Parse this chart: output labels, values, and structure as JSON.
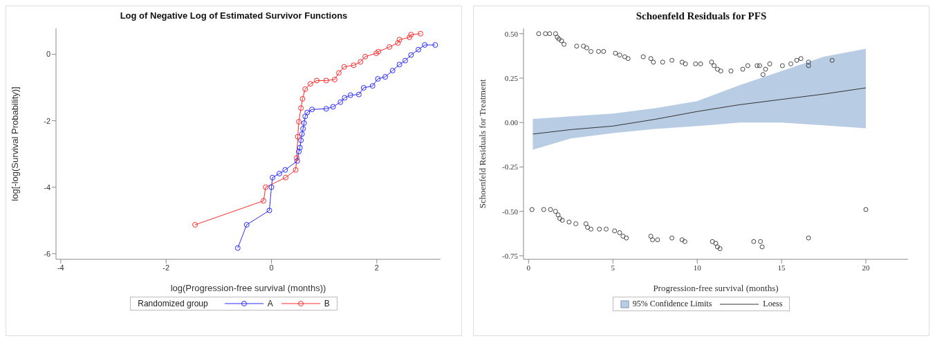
{
  "chart_data": [
    {
      "type": "line",
      "title": "Log of Negative Log of Estimated Survivor Functions",
      "xlabel": "log(Progression-free survival (months))",
      "ylabel": "log[-log(Survival Probability)]",
      "legend_title": "Randomized group",
      "legend": "bottom",
      "marker": "circle",
      "xlim": [
        -4.09,
        3.21
      ],
      "ylim": [
        -6.17,
        0.78
      ],
      "xticks": [
        -4,
        -2,
        0,
        2
      ],
      "yticks": [
        -6,
        -4,
        -2,
        0
      ],
      "series": [
        {
          "name": "A",
          "color": "#2a2aff",
          "x": [
            -0.64,
            -0.47,
            -0.04,
            0,
            0.02,
            0.15,
            0.26,
            0.49,
            0.52,
            0.54,
            0.56,
            0.58,
            0.6,
            0.62,
            0.64,
            0.68,
            0.77,
            1.04,
            1.17,
            1.31,
            1.39,
            1.5,
            1.66,
            1.75,
            1.92,
            2.02,
            2.16,
            2.3,
            2.43,
            2.54,
            2.65,
            2.79,
            2.91,
            3.11
          ],
          "values": [
            -5.83,
            -5.13,
            -4.7,
            -4.0,
            -3.71,
            -3.59,
            -3.48,
            -3.21,
            -2.93,
            -2.81,
            -2.59,
            -2.4,
            -2.24,
            -2.07,
            -1.87,
            -1.75,
            -1.66,
            -1.64,
            -1.58,
            -1.44,
            -1.31,
            -1.23,
            -1.21,
            -1.01,
            -0.95,
            -0.74,
            -0.68,
            -0.49,
            -0.31,
            -0.19,
            -0.02,
            0.14,
            0.28,
            0.28
          ]
        },
        {
          "name": "B",
          "color": "#ff2a2a",
          "x": [
            -1.45,
            -0.15,
            -0.11,
            0.27,
            0.46,
            0.48,
            0.5,
            0.52,
            0.56,
            0.59,
            0.64,
            0.74,
            0.86,
            1.04,
            1.2,
            1.28,
            1.38,
            1.56,
            1.69,
            1.78,
            1.99,
            2.03,
            2.24,
            2.4,
            2.43,
            2.62,
            2.65,
            2.83
          ],
          "values": [
            -5.13,
            -4.41,
            -4.0,
            -3.71,
            -3.48,
            -3.12,
            -2.48,
            -2.03,
            -1.62,
            -1.34,
            -1.05,
            -0.89,
            -0.79,
            -0.79,
            -0.76,
            -0.56,
            -0.38,
            -0.33,
            -0.23,
            -0.07,
            0.03,
            0.08,
            0.22,
            0.34,
            0.44,
            0.51,
            0.59,
            0.62
          ]
        }
      ]
    },
    {
      "type": "scatter",
      "title": "Schoenfeld Residuals for PFS",
      "xlabel": "Progression-free survival (months)",
      "ylabel": "Schoenfeld Residuals for Treatment",
      "annotations": [
        "95% Confidence Limits"
      ],
      "legend": "bottom",
      "marker": "circle",
      "xlim": [
        -0.3,
        22.5
      ],
      "ylim": [
        -0.77,
        0.53
      ],
      "xticks": [
        0,
        5,
        10,
        15,
        20
      ],
      "yticks": [
        {
          "value": -0.75,
          "label": "-0.75"
        },
        {
          "value": -0.5,
          "label": "-0.50"
        },
        {
          "value": -0.25,
          "label": "-0.25"
        },
        {
          "value": 0,
          "label": "0.00"
        },
        {
          "value": 0.25,
          "label": "0.25"
        },
        {
          "value": 0.5,
          "label": "0.50"
        }
      ],
      "series": [
        {
          "color": "#444444",
          "x": [
            0.6,
            1.0,
            1.25,
            1.6,
            1.7,
            1.8,
            1.95,
            2.1,
            2.85,
            3.25,
            3.45,
            3.7,
            4.15,
            4.45,
            5.15,
            5.4,
            5.7,
            5.9,
            6.8,
            7.25,
            7.4,
            7.95,
            8.5,
            9.1,
            9.3,
            9.9,
            10.2,
            10.85,
            11.0,
            11.2,
            11.4,
            12.0,
            12.7,
            13.0,
            13.55,
            13.7,
            13.9,
            14.05,
            14.3,
            15.05,
            15.55,
            15.9,
            16.15,
            16.6,
            16.6,
            18.0,
            0.2,
            0.9,
            1.3,
            1.6,
            1.75,
            1.85,
            2.0,
            2.4,
            2.8,
            3.4,
            3.5,
            3.7,
            4.2,
            4.6,
            5.1,
            5.4,
            5.6,
            5.8,
            7.25,
            7.35,
            7.65,
            8.5,
            9.1,
            9.27,
            10.9,
            11.1,
            11.2,
            11.35,
            13.35,
            13.75,
            13.85,
            16.6,
            20.0
          ],
          "values": [
            0.5,
            0.5,
            0.5,
            0.5,
            0.48,
            0.47,
            0.46,
            0.44,
            0.43,
            0.43,
            0.42,
            0.4,
            0.4,
            0.4,
            0.39,
            0.38,
            0.37,
            0.36,
            0.37,
            0.36,
            0.34,
            0.34,
            0.35,
            0.34,
            0.33,
            0.33,
            0.33,
            0.34,
            0.32,
            0.3,
            0.29,
            0.29,
            0.3,
            0.32,
            0.32,
            0.32,
            0.27,
            0.3,
            0.33,
            0.32,
            0.33,
            0.35,
            0.36,
            0.34,
            0.32,
            0.35,
            -0.49,
            -0.49,
            -0.49,
            -0.5,
            -0.52,
            -0.54,
            -0.55,
            -0.56,
            -0.57,
            -0.57,
            -0.59,
            -0.6,
            -0.6,
            -0.6,
            -0.61,
            -0.62,
            -0.64,
            -0.65,
            -0.64,
            -0.66,
            -0.66,
            -0.65,
            -0.66,
            -0.67,
            -0.67,
            -0.68,
            -0.7,
            -0.71,
            -0.67,
            -0.67,
            -0.7,
            -0.65,
            -0.49
          ]
        },
        {
          "type": "line",
          "name": "Loess",
          "color": "#333333",
          "marker": "none",
          "x": [
            0.25,
            2.5,
            5,
            7.5,
            10,
            12.5,
            15,
            17.5,
            20
          ],
          "values": [
            -0.065,
            -0.04,
            -0.02,
            0.018,
            0.062,
            0.1,
            0.13,
            0.16,
            0.195
          ],
          "lower": [
            -0.153,
            -0.09,
            -0.06,
            -0.036,
            -0.02,
            0.0,
            0.0,
            -0.016,
            -0.032
          ],
          "upper": [
            0.02,
            0.035,
            0.05,
            0.08,
            0.12,
            0.21,
            0.29,
            0.37,
            0.415
          ]
        }
      ]
    }
  ]
}
